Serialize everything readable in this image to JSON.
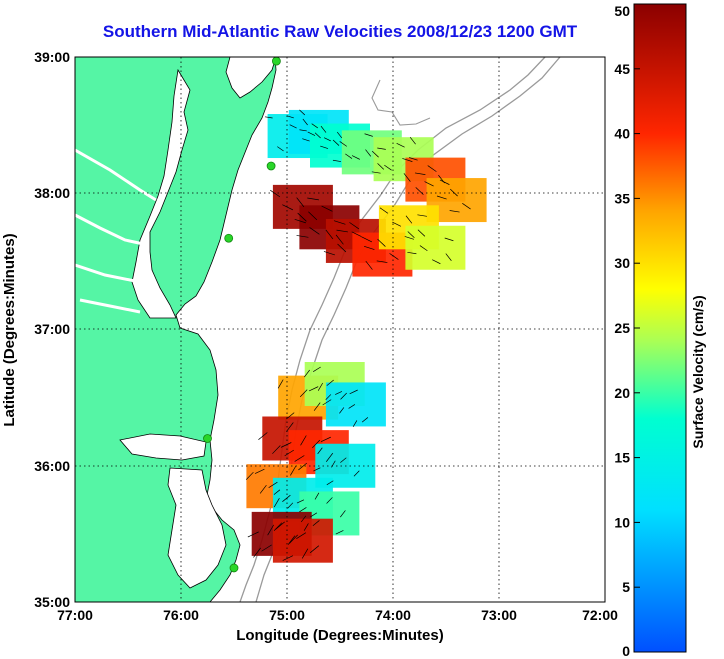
{
  "title": "Southern Mid-Atlantic Raw Velocities 2008/12/23 1200 GMT",
  "x_axis": {
    "label": "Longitude (Degrees:Minutes)",
    "ticks": [
      "77:00",
      "76:00",
      "75:00",
      "74:00",
      "73:00",
      "72:00"
    ]
  },
  "y_axis": {
    "label": "Latitude (Degrees:Minutes)",
    "ticks": [
      "39:00",
      "38:00",
      "37:00",
      "36:00",
      "35:00"
    ]
  },
  "colorbar": {
    "label": "Surface Velocity (cm/s)",
    "ticks": [
      "50",
      "45",
      "40",
      "35",
      "30",
      "25",
      "20",
      "15",
      "10",
      "5",
      "0"
    ],
    "min": 0,
    "max": 50
  },
  "chart_data": {
    "type": "heatmap",
    "xlim": [
      -77,
      -72
    ],
    "ylim": [
      35,
      39
    ],
    "grid": true,
    "legend": "right colorbar",
    "colormap": "jet",
    "units": "cm/s",
    "land_color": "#55f5a5",
    "contour_color": "#9a9a9a",
    "station_color": "#29d629",
    "regions": [
      {
        "name": "",
        "samples": [
          {
            "lon": -74.9,
            "lat": 38.42,
            "speed": 14
          },
          {
            "lon": -74.7,
            "lat": 38.45,
            "speed": 12
          },
          {
            "lon": -74.5,
            "lat": 38.35,
            "speed": 18
          },
          {
            "lon": -74.2,
            "lat": 38.3,
            "speed": 22
          },
          {
            "lon": -73.9,
            "lat": 38.25,
            "speed": 24
          },
          {
            "lon": -73.6,
            "lat": 38.1,
            "speed": 38
          },
          {
            "lon": -73.4,
            "lat": 37.95,
            "speed": 34
          },
          {
            "lon": -74.85,
            "lat": 37.9,
            "speed": 48
          },
          {
            "lon": -74.6,
            "lat": 37.75,
            "speed": 50
          },
          {
            "lon": -74.35,
            "lat": 37.65,
            "speed": 46
          },
          {
            "lon": -74.1,
            "lat": 37.55,
            "speed": 40
          },
          {
            "lon": -73.85,
            "lat": 37.75,
            "speed": 30
          },
          {
            "lon": -73.6,
            "lat": 37.6,
            "speed": 26
          }
        ]
      },
      {
        "name": "",
        "samples": [
          {
            "lon": -74.8,
            "lat": 36.5,
            "speed": 34
          },
          {
            "lon": -74.55,
            "lat": 36.6,
            "speed": 24
          },
          {
            "lon": -74.35,
            "lat": 36.45,
            "speed": 12
          },
          {
            "lon": -74.95,
            "lat": 36.2,
            "speed": 45
          },
          {
            "lon": -74.7,
            "lat": 36.1,
            "speed": 40
          },
          {
            "lon": -74.45,
            "lat": 36.0,
            "speed": 14
          },
          {
            "lon": -75.1,
            "lat": 35.85,
            "speed": 36
          },
          {
            "lon": -74.85,
            "lat": 35.75,
            "speed": 14
          },
          {
            "lon": -74.6,
            "lat": 35.65,
            "speed": 20
          },
          {
            "lon": -75.05,
            "lat": 35.5,
            "speed": 50
          },
          {
            "lon": -74.85,
            "lat": 35.45,
            "speed": 44
          }
        ]
      }
    ],
    "stations": [
      {
        "lon": -75.1,
        "lat": 38.97
      },
      {
        "lon": -75.15,
        "lat": 38.2
      },
      {
        "lon": -75.55,
        "lat": 37.67
      },
      {
        "lon": -75.75,
        "lat": 36.2
      },
      {
        "lon": -75.5,
        "lat": 35.25
      }
    ]
  }
}
